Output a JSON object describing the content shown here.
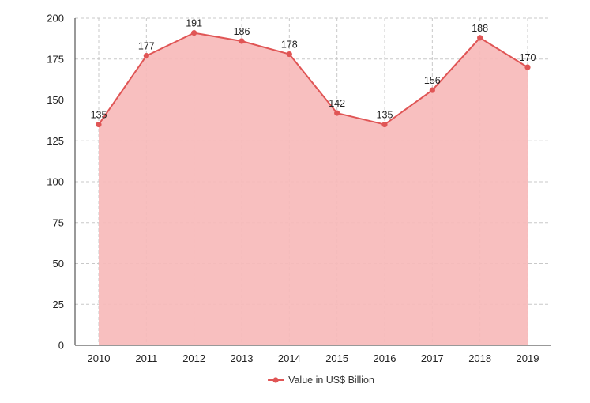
{
  "chart_data": {
    "type": "area",
    "categories": [
      "2010",
      "2011",
      "2012",
      "2013",
      "2014",
      "2015",
      "2016",
      "2017",
      "2018",
      "2019"
    ],
    "series": [
      {
        "name": "Value in US$ Billion",
        "values": [
          135,
          177,
          191,
          186,
          178,
          142,
          135,
          156,
          188,
          170
        ]
      }
    ],
    "ylim": [
      0,
      200
    ],
    "yticks": [
      0,
      25,
      50,
      75,
      100,
      125,
      150,
      175,
      200
    ],
    "grid": true,
    "legend_position": "bottom-center",
    "data_labels": true,
    "colors": {
      "line": "#e05555",
      "fill": "#f7baba",
      "point": "#e05555"
    }
  }
}
